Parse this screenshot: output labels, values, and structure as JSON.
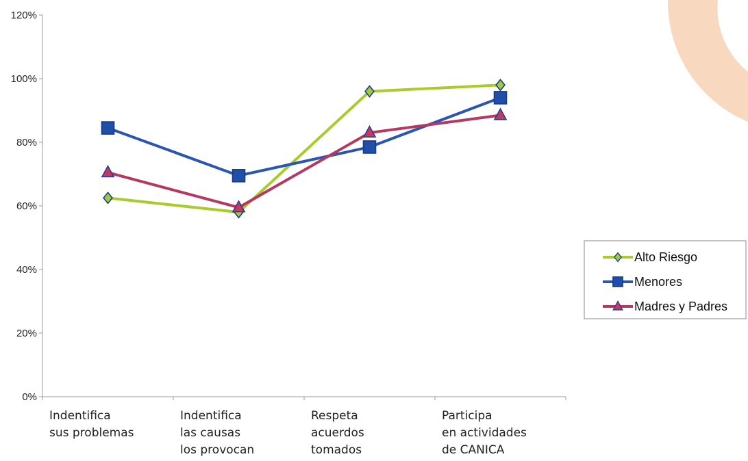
{
  "chart_data": {
    "type": "line",
    "categories": [
      [
        "Indentifica",
        "sus problemas"
      ],
      [
        "Indentifica",
        "las causas",
        "los provocan"
      ],
      [
        "Respeta",
        "acuerdos",
        "tomados"
      ],
      [
        "Participa",
        "en actividades",
        "de CANICA"
      ]
    ],
    "ylim": [
      0,
      120
    ],
    "yticks": [
      "0%",
      "20%",
      "40%",
      "60%",
      "80%",
      "100%",
      "120%"
    ],
    "grid": false,
    "legend_position": "right",
    "series": [
      {
        "name": "Alto Riesgo",
        "values": [
          62.5,
          58,
          96,
          98
        ],
        "color": "#a8cc2a",
        "marker": "diamond",
        "marker_fill": "#9ccc3c",
        "marker_edge": "#1f3a8a"
      },
      {
        "name": "Menores",
        "values": [
          84.5,
          69.5,
          78.5,
          94
        ],
        "color": "#2a56b0",
        "marker": "square",
        "marker_fill": "#1f4fa8",
        "marker_edge": "#163a80"
      },
      {
        "name": "Madres y Padres",
        "values": [
          70.5,
          59.5,
          83,
          88.5
        ],
        "color": "#b63760",
        "marker": "triangle",
        "marker_fill": "#c23a5e",
        "marker_edge": "#2a3c95"
      }
    ]
  },
  "decor": {
    "accent_color": "#f8d9c0"
  }
}
